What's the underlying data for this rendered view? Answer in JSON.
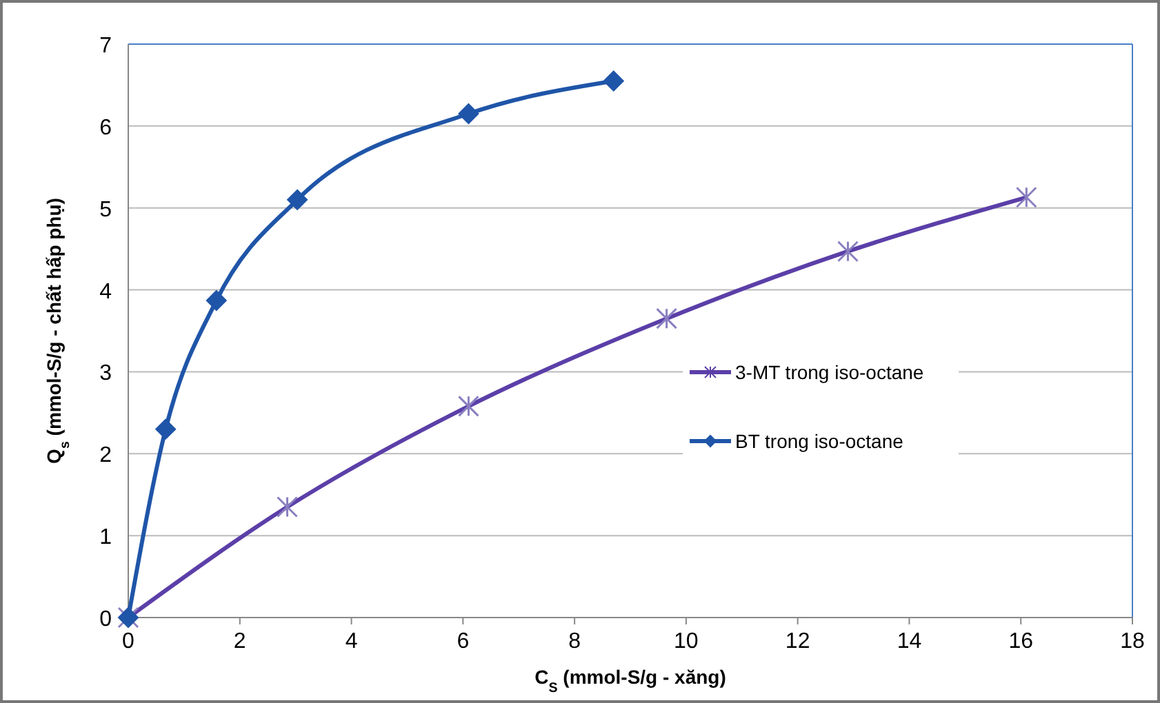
{
  "chart_data": {
    "type": "line",
    "xlabel": "C$_{S}$ (mmol-S/g - xăng)",
    "ylabel": "Q$_{s}$ (mmol-S/g - chất hấp phụ)",
    "series": [
      {
        "name": "3-MT trong iso-octane",
        "color": "#5b3fa8",
        "marker": "cross",
        "x": [
          0,
          2.85,
          6.1,
          9.65,
          12.9,
          16.1
        ],
        "values": [
          0,
          1.35,
          2.58,
          3.65,
          4.47,
          5.13
        ]
      },
      {
        "name": "BT trong iso-octane",
        "color": "#1f55a8",
        "marker": "diamond",
        "x": [
          0,
          0.67,
          1.58,
          3.03,
          6.1,
          8.7
        ],
        "values": [
          0,
          2.3,
          3.87,
          5.1,
          6.15,
          6.55
        ]
      }
    ],
    "xlim": [
      0,
      18
    ],
    "xticks": [
      0,
      2,
      4,
      6,
      8,
      10,
      12,
      14,
      16,
      18
    ],
    "ylim": [
      0,
      7
    ],
    "yticks": [
      0,
      1,
      2,
      3,
      4,
      5,
      6,
      7
    ],
    "grid": "y",
    "legend": "right",
    "line_style": "solid"
  }
}
